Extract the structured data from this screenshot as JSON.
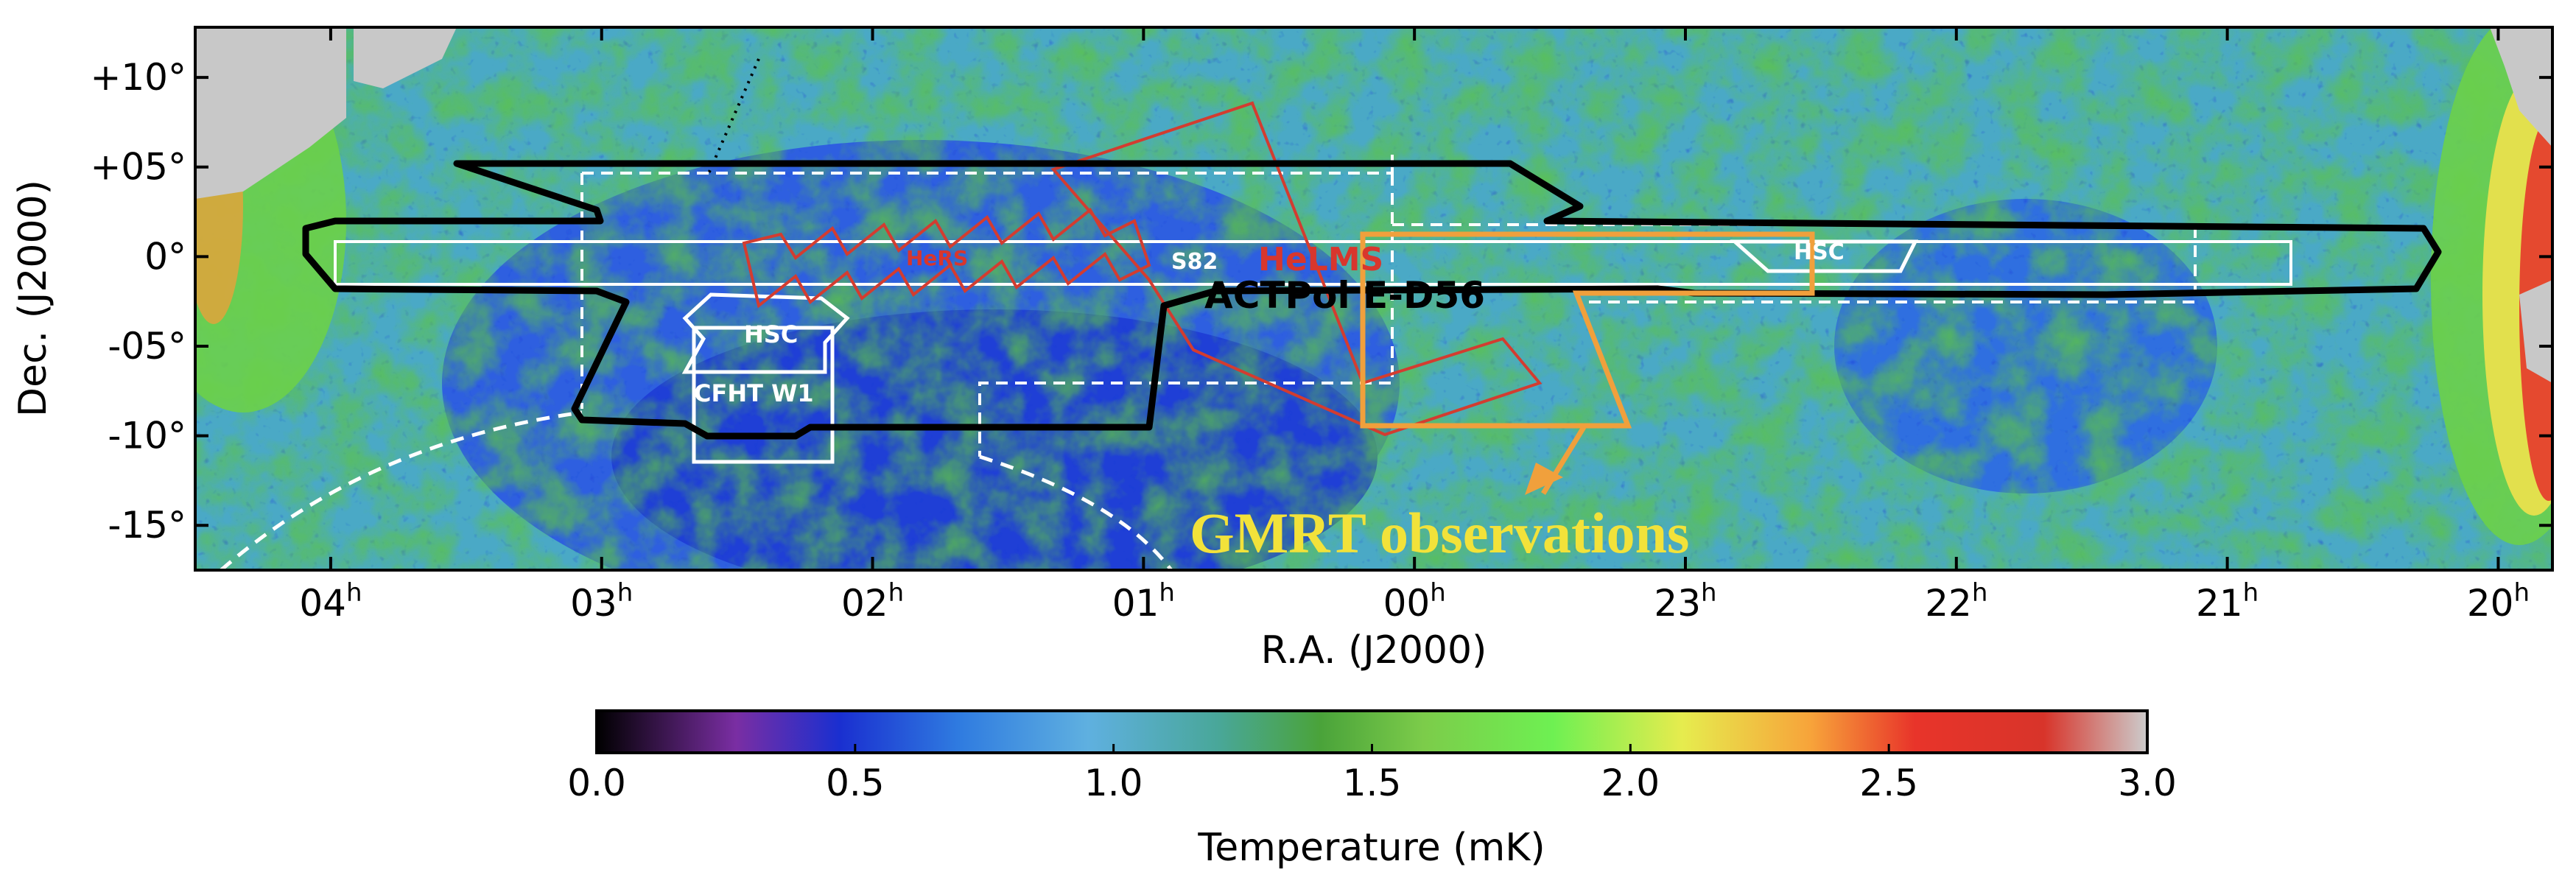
{
  "chart_data": {
    "type": "heatmap",
    "xlabel": "R.A. (J2000)",
    "ylabel": "Dec. (J2000)",
    "x_ticks": [
      {
        "hours": 4,
        "text": "04",
        "sup": "h"
      },
      {
        "hours": 3,
        "text": "03",
        "sup": "h"
      },
      {
        "hours": 2,
        "text": "02",
        "sup": "h"
      },
      {
        "hours": 1,
        "text": "01",
        "sup": "h"
      },
      {
        "hours": 0,
        "text": "00",
        "sup": "h"
      },
      {
        "hours": -1,
        "text": "23",
        "sup": "h"
      },
      {
        "hours": -2,
        "text": "22",
        "sup": "h"
      },
      {
        "hours": -3,
        "text": "21",
        "sup": "h"
      },
      {
        "hours": -4,
        "text": "20",
        "sup": "h"
      }
    ],
    "y_ticks": [
      {
        "deg": 10,
        "text": "+10°"
      },
      {
        "deg": 5,
        "text": "+05°"
      },
      {
        "deg": 0,
        "text": "0°"
      },
      {
        "deg": -5,
        "text": "-05°"
      },
      {
        "deg": -10,
        "text": "-10°"
      },
      {
        "deg": -15,
        "text": "-15°"
      }
    ],
    "xlim_hours": [
      4.5,
      -4.2
    ],
    "ylim_deg": [
      -17.5,
      12.8
    ],
    "colorbar": {
      "label": "Temperature (mK)",
      "range": [
        0.0,
        3.0
      ],
      "ticks": [
        "0.0",
        "0.5",
        "1.0",
        "1.5",
        "2.0",
        "2.5",
        "3.0"
      ],
      "stops": [
        {
          "v": 0.0,
          "color": "#000000"
        },
        {
          "v": 0.27,
          "color": "#7a2ea3"
        },
        {
          "v": 0.47,
          "color": "#1a2fd0"
        },
        {
          "v": 0.7,
          "color": "#2f7be0"
        },
        {
          "v": 0.95,
          "color": "#5fb0e0"
        },
        {
          "v": 1.2,
          "color": "#49a79a"
        },
        {
          "v": 1.4,
          "color": "#4aa33a"
        },
        {
          "v": 1.6,
          "color": "#7ccc4a"
        },
        {
          "v": 1.85,
          "color": "#6ef052"
        },
        {
          "v": 2.1,
          "color": "#e6ec4e"
        },
        {
          "v": 2.35,
          "color": "#f7a33a"
        },
        {
          "v": 2.55,
          "color": "#e8342a"
        },
        {
          "v": 2.8,
          "color": "#d8342a"
        },
        {
          "v": 3.0,
          "color": "#cccccc"
        }
      ]
    },
    "survey_labels": {
      "hsc_west": "HSC",
      "cfht": "CFHT W1",
      "hers": "HeRS",
      "s82": "S82",
      "helms": "HeLMS",
      "actpol": "ACTPol E-D56",
      "hsc_east": "HSC"
    },
    "annotation": "GMRT observations",
    "colors": {
      "actpol_outline": "#000000",
      "herschel_outline": "#d33c30",
      "white_outline": "#ffffff",
      "gmrt_box": "#f0a03c",
      "gmrt_text": "#f2e23a",
      "no_data": "#c8c8c8"
    }
  }
}
